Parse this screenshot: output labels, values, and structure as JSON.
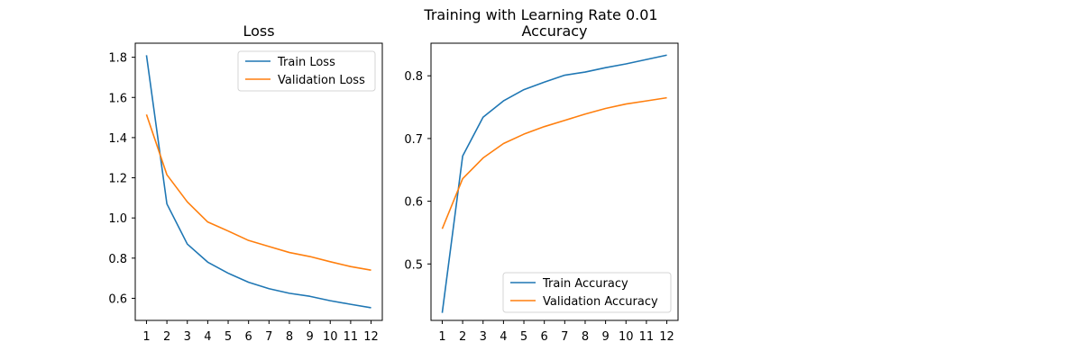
{
  "suptitle": "Training with Learning Rate 0.01",
  "chart_data": [
    {
      "type": "line",
      "title": "Loss",
      "xlabel": "",
      "ylabel": "",
      "x": [
        1,
        2,
        3,
        4,
        5,
        6,
        7,
        8,
        9,
        10,
        11,
        12
      ],
      "xticks": [
        "1",
        "2",
        "3",
        "4",
        "5",
        "6",
        "7",
        "8",
        "9",
        "10",
        "11",
        "12"
      ],
      "yticks": [
        "0.6",
        "0.8",
        "1.0",
        "1.2",
        "1.4",
        "1.6",
        "1.8"
      ],
      "ylim": [
        0.49,
        1.87
      ],
      "legend": "top-right",
      "series": [
        {
          "name": "Train Loss",
          "color": "#1f77b4",
          "values": [
            1.81,
            1.07,
            0.87,
            0.78,
            0.725,
            0.68,
            0.648,
            0.625,
            0.61,
            0.588,
            0.57,
            0.553
          ]
        },
        {
          "name": "Validation Loss",
          "color": "#ff7f0e",
          "values": [
            1.515,
            1.215,
            1.08,
            0.98,
            0.935,
            0.888,
            0.858,
            0.828,
            0.808,
            0.782,
            0.758,
            0.74
          ]
        }
      ]
    },
    {
      "type": "line",
      "title": "Accuracy",
      "xlabel": "",
      "ylabel": "",
      "x": [
        1,
        2,
        3,
        4,
        5,
        6,
        7,
        8,
        9,
        10,
        11,
        12
      ],
      "xticks": [
        "1",
        "2",
        "3",
        "4",
        "5",
        "6",
        "7",
        "8",
        "9",
        "10",
        "11",
        "12"
      ],
      "yticks": [
        "0.5",
        "0.6",
        "0.7",
        "0.8"
      ],
      "ylim": [
        0.41,
        0.852
      ],
      "legend": "bottom-right",
      "series": [
        {
          "name": "Train Accuracy",
          "color": "#1f77b4",
          "values": [
            0.422,
            0.672,
            0.734,
            0.76,
            0.778,
            0.79,
            0.801,
            0.806,
            0.813,
            0.819,
            0.826,
            0.833
          ]
        },
        {
          "name": "Validation Accuracy",
          "color": "#ff7f0e",
          "values": [
            0.556,
            0.636,
            0.669,
            0.692,
            0.707,
            0.719,
            0.729,
            0.739,
            0.748,
            0.755,
            0.76,
            0.765
          ]
        }
      ]
    }
  ]
}
